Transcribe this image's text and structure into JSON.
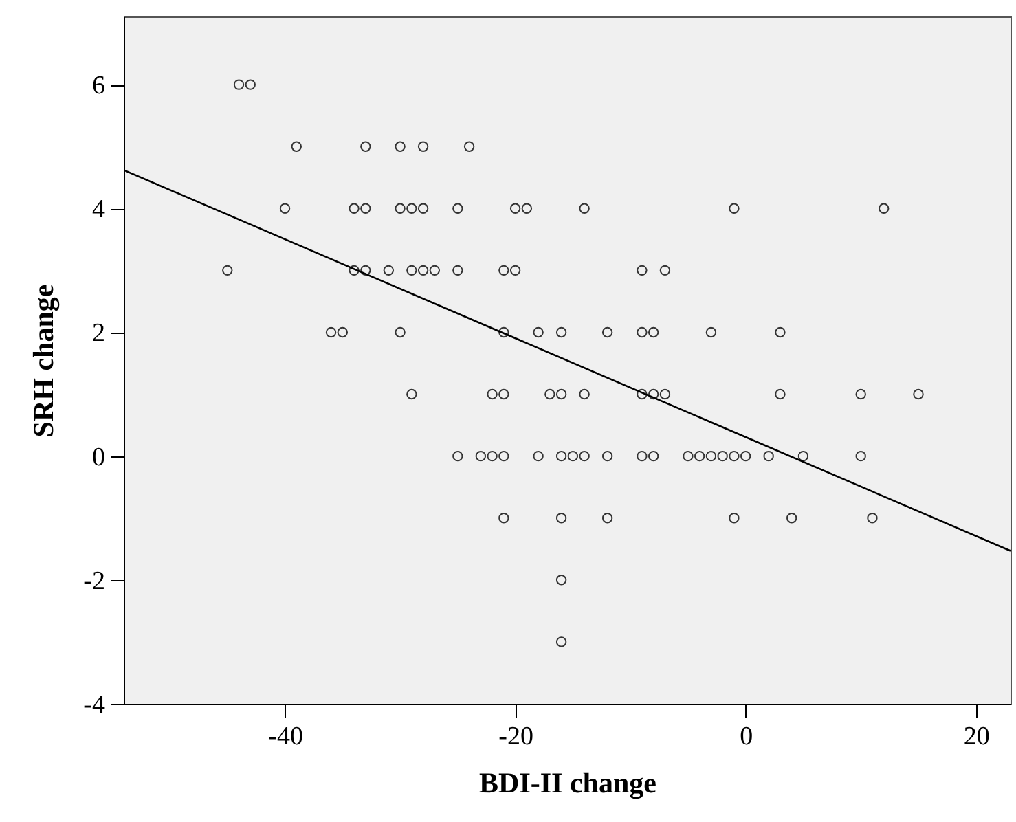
{
  "chart_data": {
    "type": "scatter",
    "xlabel": "BDI-II change",
    "ylabel": "SRH change",
    "xlim": [
      -54,
      23
    ],
    "ylim": [
      -4,
      7.1
    ],
    "xticks": [
      -40,
      -20,
      0,
      20
    ],
    "yticks": [
      -4,
      -2,
      0,
      2,
      4,
      6
    ],
    "grid": false,
    "series": [
      {
        "marker": "circle",
        "color": "#333333",
        "x": [
          -44,
          -43,
          -39,
          -33,
          -30,
          -28,
          -24,
          -40,
          -34,
          -33,
          -30,
          -29,
          -28,
          -25,
          -20,
          -19,
          -14,
          -1,
          12,
          -45,
          -34,
          -33,
          -31,
          -29,
          -28,
          -27,
          -25,
          -21,
          -20,
          -9,
          -7,
          -36,
          -35,
          -30,
          -21,
          -18,
          -16,
          -12,
          -9,
          -8,
          -3,
          3,
          -29,
          -22,
          -21,
          -17,
          -16,
          -14,
          -9,
          -8,
          -7,
          3,
          10,
          15,
          -25,
          -23,
          -22,
          -21,
          -18,
          -16,
          -15,
          -14,
          -12,
          -9,
          -8,
          -5,
          -4,
          -3,
          -2,
          -1,
          0,
          2,
          5,
          10,
          -21,
          -16,
          -12,
          -1,
          4,
          11,
          -16,
          -16
        ],
        "values": [
          6,
          6,
          5,
          5,
          5,
          5,
          5,
          4,
          4,
          4,
          4,
          4,
          4,
          4,
          4,
          4,
          4,
          4,
          4,
          3,
          3,
          3,
          3,
          3,
          3,
          3,
          3,
          3,
          3,
          3,
          3,
          2,
          2,
          2,
          2,
          2,
          2,
          2,
          2,
          2,
          2,
          2,
          1,
          1,
          1,
          1,
          1,
          1,
          1,
          1,
          1,
          1,
          1,
          1,
          0,
          0,
          0,
          0,
          0,
          0,
          0,
          0,
          0,
          0,
          0,
          0,
          0,
          0,
          0,
          0,
          0,
          0,
          0,
          0,
          -1,
          -1,
          -1,
          -1,
          -1,
          -1,
          -2,
          -3
        ]
      },
      {
        "type": "line",
        "marker": "none",
        "color": "#000000",
        "x": [
          -54,
          23
        ],
        "values": [
          4.62,
          -1.53
        ]
      }
    ]
  }
}
